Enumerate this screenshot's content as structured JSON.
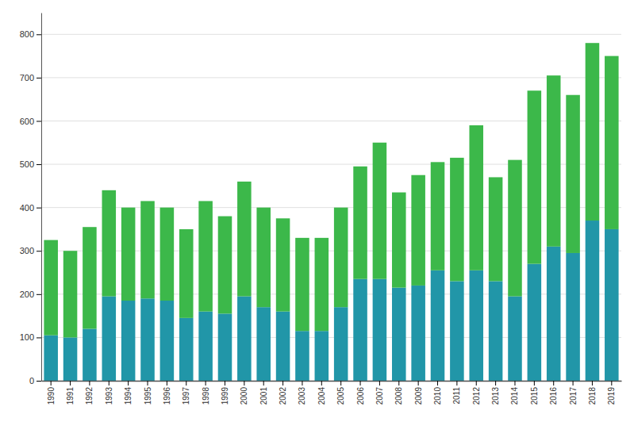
{
  "chart_data": {
    "type": "bar",
    "stacked": true,
    "grid": true,
    "categories": [
      "1990",
      "1991",
      "1992",
      "1993",
      "1994",
      "1995",
      "1996",
      "1997",
      "1998",
      "1999",
      "2000",
      "2001",
      "2002",
      "2003",
      "2004",
      "2005",
      "2006",
      "2007",
      "2008",
      "2009",
      "2010",
      "2011",
      "2012",
      "2013",
      "2014",
      "2015",
      "2016",
      "2017",
      "2018",
      "2019"
    ],
    "series": [
      {
        "color": "#2196a8",
        "values": [
          105,
          100,
          120,
          195,
          185,
          190,
          185,
          145,
          160,
          155,
          195,
          170,
          160,
          115,
          115,
          170,
          235,
          235,
          215,
          220,
          255,
          230,
          255,
          230,
          195,
          270,
          310,
          295,
          370,
          350
        ]
      },
      {
        "color": "#3cb84a",
        "values": [
          220,
          200,
          235,
          245,
          215,
          225,
          215,
          205,
          255,
          225,
          265,
          230,
          215,
          215,
          215,
          230,
          260,
          315,
          220,
          255,
          250,
          285,
          335,
          240,
          315,
          400,
          395,
          365,
          410,
          400
        ]
      }
    ],
    "ylim": [
      0,
      850
    ],
    "yticks": [
      0,
      100,
      200,
      300,
      400,
      500,
      600,
      700,
      800
    ]
  }
}
